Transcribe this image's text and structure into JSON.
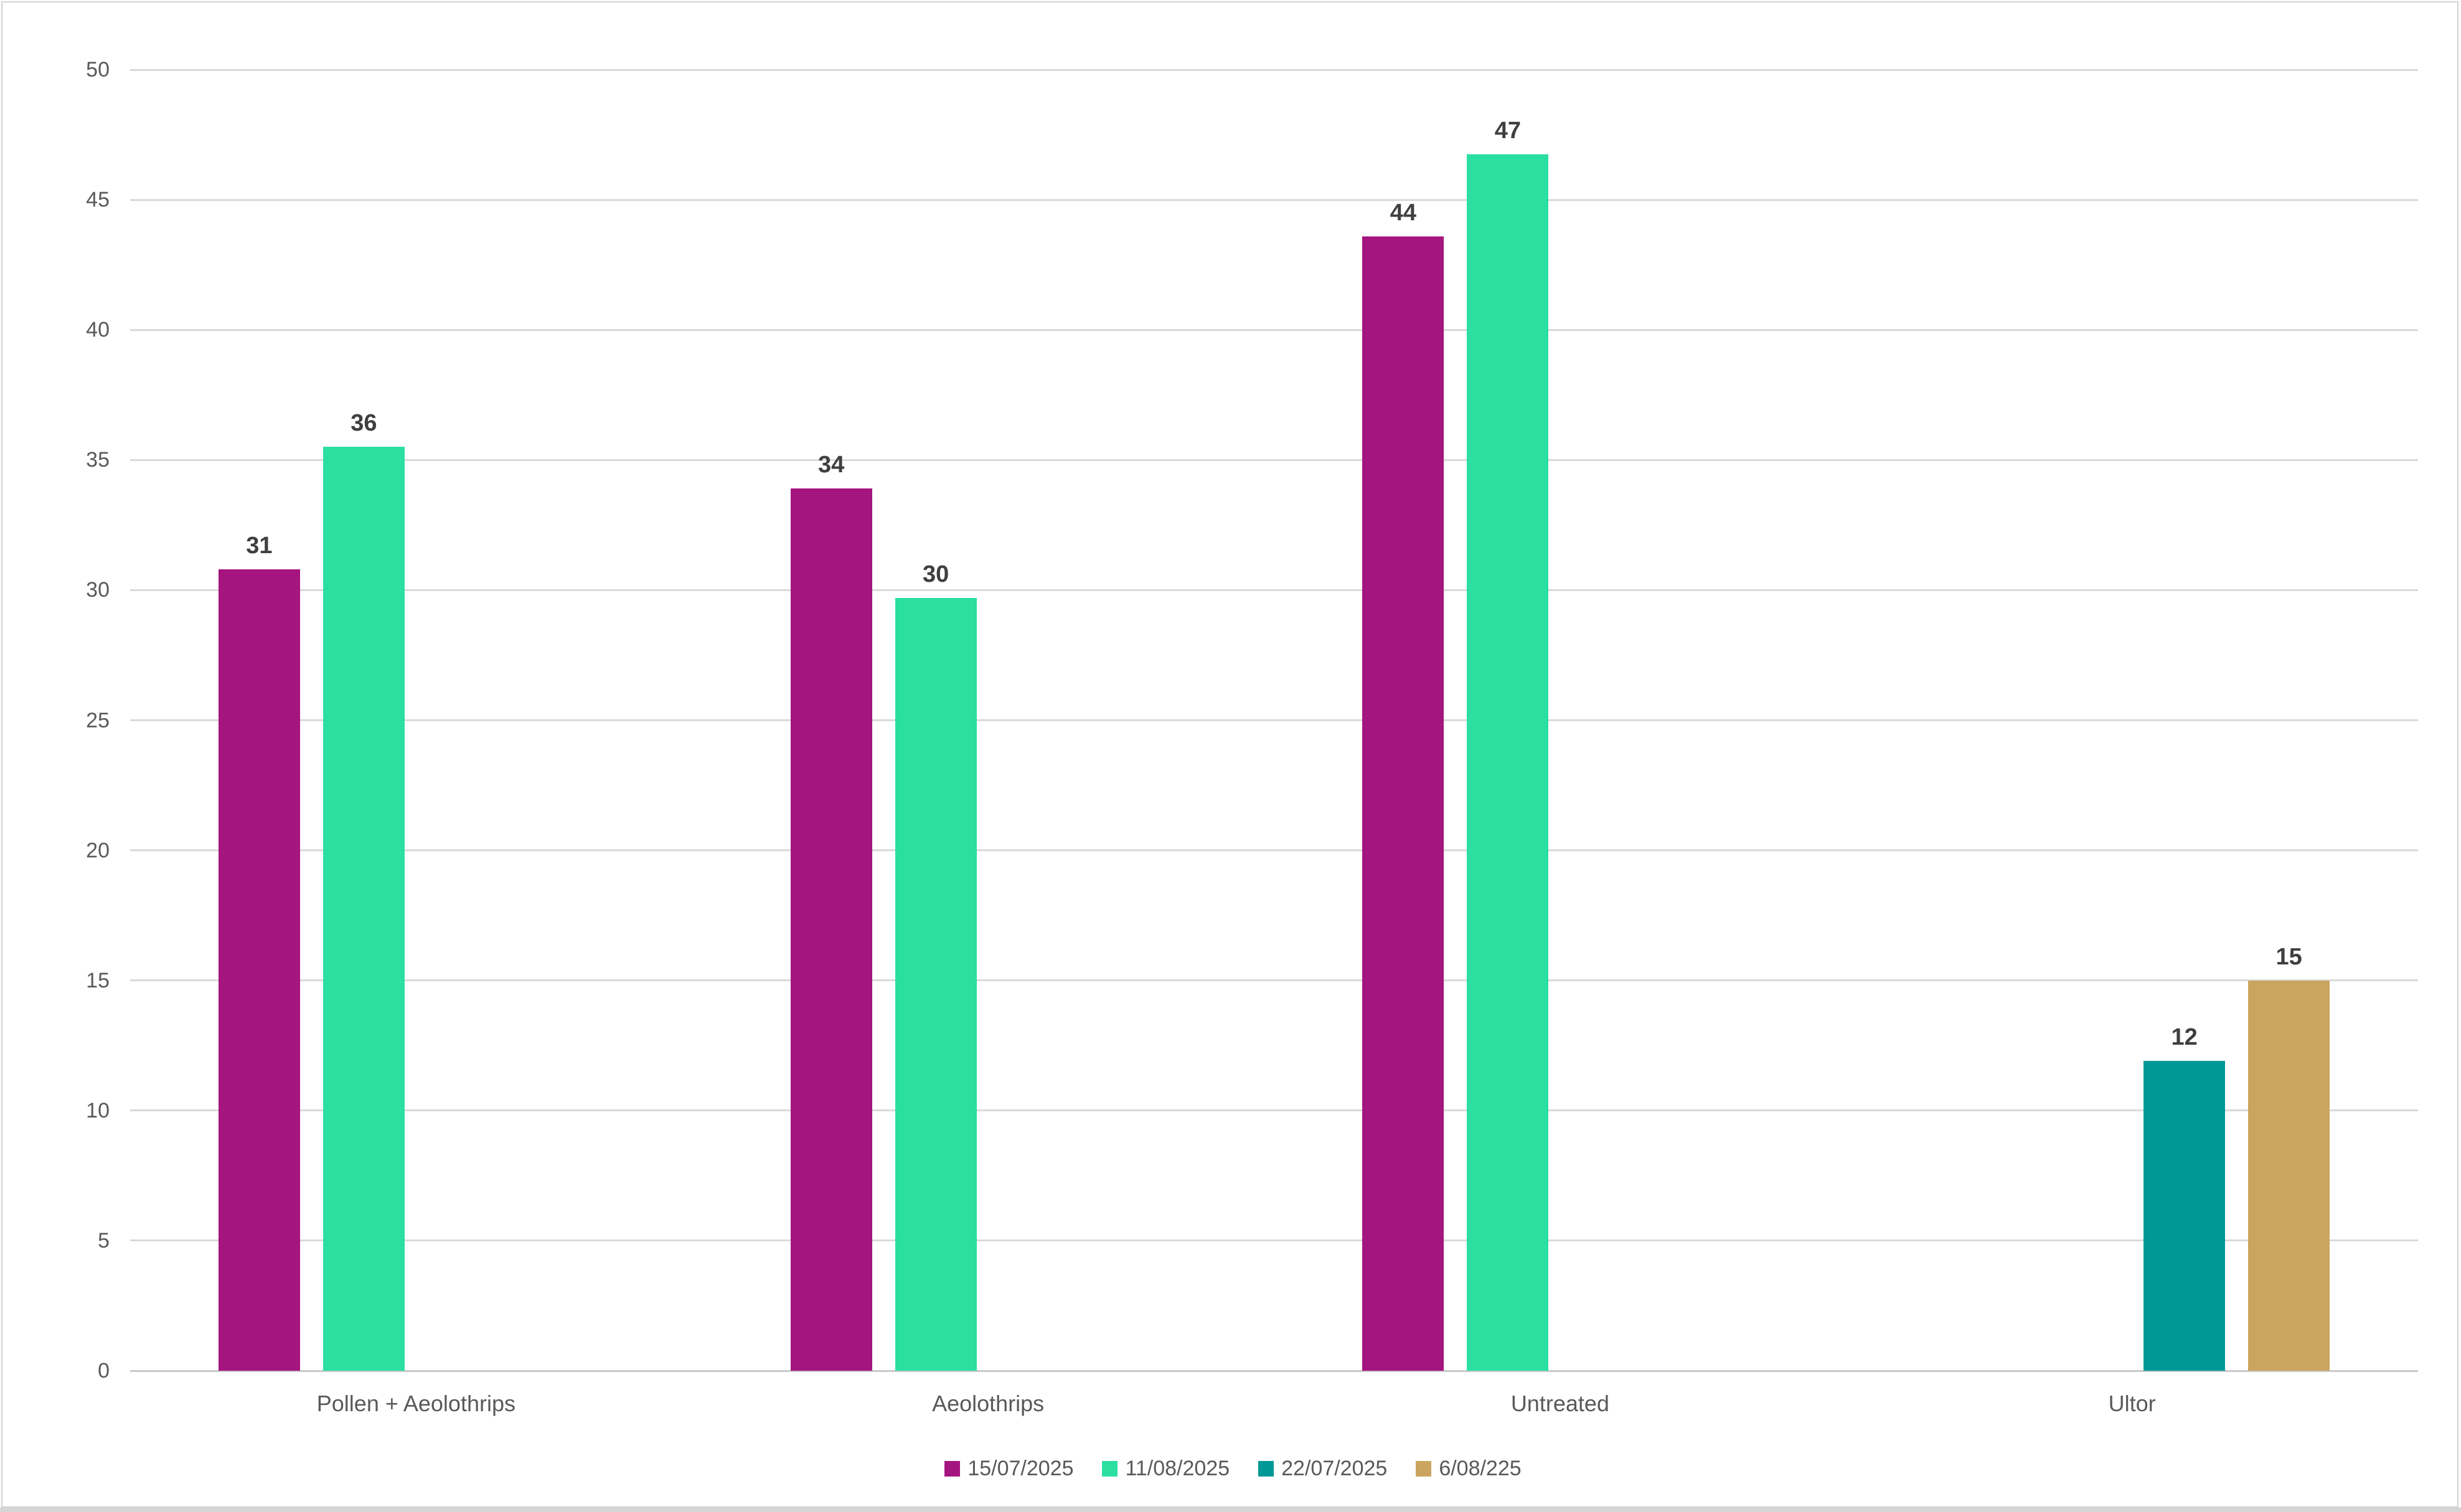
{
  "chart_data": {
    "type": "bar",
    "title": "",
    "xlabel": "",
    "ylabel": "",
    "categories": [
      "Pollen + Aeolothrips",
      "Aeolothrips",
      "Untreated",
      "Ultor"
    ],
    "series": [
      {
        "name": "15/07/2025",
        "color": "#A5157F",
        "values": [
          31,
          34,
          44,
          null
        ],
        "bar_heights": [
          30.8,
          33.9,
          43.6,
          null
        ]
      },
      {
        "name": "11/08/2025",
        "color": "#2BDFA1",
        "values": [
          36,
          30,
          47,
          null
        ],
        "bar_heights": [
          35.5,
          29.7,
          46.75,
          null
        ]
      },
      {
        "name": "22/07/2025",
        "color": "#009896",
        "values": [
          null,
          null,
          null,
          12
        ],
        "bar_heights": [
          null,
          null,
          null,
          11.9
        ]
      },
      {
        "name": "6/08/225",
        "color": "#CBA55F",
        "values": [
          null,
          null,
          null,
          15
        ],
        "bar_heights": [
          null,
          null,
          null,
          15.0
        ]
      }
    ],
    "ylim": [
      0,
      50
    ],
    "ytick_step": 5,
    "yticks": [
      0,
      5,
      10,
      15,
      20,
      25,
      30,
      35,
      40,
      45,
      50
    ],
    "grid": true,
    "legend_position": "bottom"
  },
  "colors": {
    "background": "#FFFFFF",
    "gridline": "#D9D9D9",
    "axis_line": "#C9C9C9",
    "tick_text": "#595959",
    "category_text": "#595959",
    "data_label_text": "#3F3F3F",
    "frame_border": "#D2D2D2",
    "bottom_strip": "#D5D5D5"
  }
}
